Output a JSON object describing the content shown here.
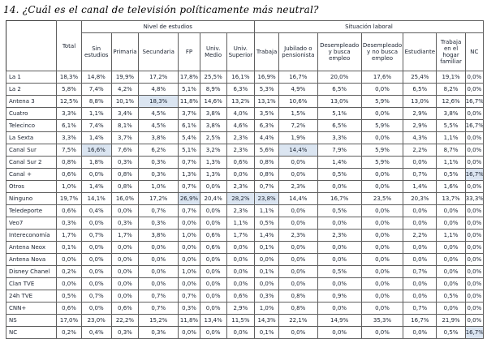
{
  "title": "14. ¿Cuál es el canal de televisión políticamente más neutral?",
  "table": {
    "total_header": "Total",
    "groups": [
      {
        "label": "Nivel de estudios",
        "columns": [
          "Sin estudios",
          "Primaria",
          "Secundaria",
          "FP",
          "Univ. Medio",
          "Univ. Superior"
        ]
      },
      {
        "label": "Situación laboral",
        "columns": [
          "Trabaja",
          "Jubilado o pensionista",
          "Desempleado y busca empleo",
          "Desempleado y no busca empleo",
          "Estudiante",
          "Trabaja en el hogar familiar",
          "NC"
        ]
      }
    ],
    "highlight_color": "#dbe5f1",
    "rows": [
      {
        "label": "La 1",
        "values": [
          "18,3%",
          "14,8%",
          "19,9%",
          "17,2%",
          "17,8%",
          "25,5%",
          "16,1%",
          "16,9%",
          "16,7%",
          "20,0%",
          "17,6%",
          "25,4%",
          "19,1%",
          "0,0%"
        ],
        "highlights": []
      },
      {
        "label": "La 2",
        "values": [
          "5,8%",
          "7,4%",
          "4,2%",
          "4,8%",
          "5,1%",
          "8,9%",
          "6,3%",
          "5,3%",
          "4,9%",
          "6,5%",
          "0,0%",
          "6,5%",
          "8,2%",
          "0,0%"
        ],
        "highlights": []
      },
      {
        "label": "Antena 3",
        "values": [
          "12,5%",
          "8,8%",
          "10,1%",
          "18,3%",
          "11,8%",
          "14,6%",
          "13,2%",
          "13,1%",
          "10,6%",
          "13,0%",
          "5,9%",
          "13,0%",
          "12,6%",
          "16,7%"
        ],
        "highlights": [
          3
        ]
      },
      {
        "label": "Cuatro",
        "values": [
          "3,3%",
          "1,1%",
          "3,4%",
          "4,5%",
          "3,7%",
          "3,8%",
          "4,0%",
          "3,5%",
          "1,5%",
          "5,1%",
          "0,0%",
          "2,9%",
          "3,8%",
          "0,0%"
        ],
        "highlights": []
      },
      {
        "label": "Telecinco",
        "values": [
          "6,1%",
          "7,4%",
          "8,1%",
          "4,5%",
          "6,1%",
          "3,8%",
          "4,6%",
          "6,3%",
          "7,2%",
          "6,5%",
          "5,9%",
          "2,9%",
          "5,5%",
          "16,7%"
        ],
        "highlights": []
      },
      {
        "label": "La Sexta",
        "values": [
          "3,3%",
          "1,4%",
          "3,7%",
          "3,8%",
          "5,4%",
          "2,5%",
          "2,3%",
          "4,4%",
          "1,9%",
          "3,3%",
          "0,0%",
          "4,3%",
          "1,1%",
          "0,0%"
        ],
        "highlights": []
      },
      {
        "label": "Canal Sur",
        "values": [
          "7,5%",
          "16,6%",
          "7,6%",
          "6,2%",
          "5,1%",
          "3,2%",
          "2,3%",
          "5,6%",
          "14,4%",
          "7,9%",
          "5,9%",
          "2,2%",
          "8,7%",
          "0,0%"
        ],
        "highlights": [
          1,
          8
        ]
      },
      {
        "label": "Canal Sur 2",
        "values": [
          "0,8%",
          "1,8%",
          "0,3%",
          "0,3%",
          "0,7%",
          "1,3%",
          "0,6%",
          "0,8%",
          "0,0%",
          "1,4%",
          "5,9%",
          "0,0%",
          "1,1%",
          "0,0%"
        ],
        "highlights": []
      },
      {
        "label": "Canal +",
        "values": [
          "0,6%",
          "0,0%",
          "0,8%",
          "0,3%",
          "1,3%",
          "1,3%",
          "0,0%",
          "0,8%",
          "0,0%",
          "0,5%",
          "0,0%",
          "0,7%",
          "0,5%",
          "16,7%"
        ],
        "highlights": [
          13
        ]
      },
      {
        "label": "Otros",
        "values": [
          "1,0%",
          "1,4%",
          "0,8%",
          "1,0%",
          "0,7%",
          "0,0%",
          "2,3%",
          "0,7%",
          "2,3%",
          "0,0%",
          "0,0%",
          "1,4%",
          "1,6%",
          "0,0%"
        ],
        "highlights": []
      },
      {
        "label": "Ninguno",
        "values": [
          "19,7%",
          "14,1%",
          "16,0%",
          "17,2%",
          "26,9%",
          "20,4%",
          "28,2%",
          "23,8%",
          "14,4%",
          "16,7%",
          "23,5%",
          "20,3%",
          "13,7%",
          "33,3%"
        ],
        "highlights": [
          4,
          6,
          7
        ]
      },
      {
        "label": "Teledeporte",
        "values": [
          "0,6%",
          "0,4%",
          "0,0%",
          "0,7%",
          "0,7%",
          "0,0%",
          "2,3%",
          "1,1%",
          "0,0%",
          "0,5%",
          "0,0%",
          "0,0%",
          "0,0%",
          "0,0%"
        ],
        "highlights": []
      },
      {
        "label": "Veo7",
        "values": [
          "0,3%",
          "0,0%",
          "0,3%",
          "0,3%",
          "0,0%",
          "0,0%",
          "1,1%",
          "0,5%",
          "0,0%",
          "0,0%",
          "0,0%",
          "0,0%",
          "0,0%",
          "0,0%"
        ],
        "highlights": []
      },
      {
        "label": "Intereconomía",
        "values": [
          "1,7%",
          "0,7%",
          "1,7%",
          "3,8%",
          "1,0%",
          "0,6%",
          "1,7%",
          "1,4%",
          "2,3%",
          "2,3%",
          "0,0%",
          "2,2%",
          "1,1%",
          "0,0%"
        ],
        "highlights": []
      },
      {
        "label": "Antena Neox",
        "values": [
          "0,1%",
          "0,0%",
          "0,0%",
          "0,0%",
          "0,0%",
          "0,6%",
          "0,0%",
          "0,1%",
          "0,0%",
          "0,0%",
          "0,0%",
          "0,0%",
          "0,0%",
          "0,0%"
        ],
        "highlights": []
      },
      {
        "label": "Antena Nova",
        "values": [
          "0,0%",
          "0,0%",
          "0,0%",
          "0,0%",
          "0,0%",
          "0,0%",
          "0,0%",
          "0,0%",
          "0,0%",
          "0,0%",
          "0,0%",
          "0,0%",
          "0,0%",
          "0,0%"
        ],
        "highlights": []
      },
      {
        "label": "Disney Chanel",
        "values": [
          "0,2%",
          "0,0%",
          "0,0%",
          "0,0%",
          "1,0%",
          "0,0%",
          "0,0%",
          "0,1%",
          "0,0%",
          "0,5%",
          "0,0%",
          "0,7%",
          "0,0%",
          "0,0%"
        ],
        "highlights": []
      },
      {
        "label": "Clan TVE",
        "values": [
          "0,0%",
          "0,0%",
          "0,0%",
          "0,0%",
          "0,0%",
          "0,0%",
          "0,0%",
          "0,0%",
          "0,0%",
          "0,0%",
          "0,0%",
          "0,0%",
          "0,0%",
          "0,0%"
        ],
        "highlights": []
      },
      {
        "label": "24h TVE",
        "values": [
          "0,5%",
          "0,7%",
          "0,0%",
          "0,7%",
          "0,7%",
          "0,0%",
          "0,6%",
          "0,3%",
          "0,8%",
          "0,9%",
          "0,0%",
          "0,0%",
          "0,5%",
          "0,0%"
        ],
        "highlights": []
      },
      {
        "label": "CNN+",
        "values": [
          "0,6%",
          "0,0%",
          "0,6%",
          "0,7%",
          "0,3%",
          "0,0%",
          "2,9%",
          "1,0%",
          "0,8%",
          "0,0%",
          "0,0%",
          "0,7%",
          "0,0%",
          "0,0%"
        ],
        "highlights": []
      },
      {
        "label": "NS",
        "values": [
          "17,0%",
          "23,0%",
          "22,2%",
          "15,2%",
          "11,8%",
          "13,4%",
          "11,5%",
          "14,3%",
          "22,1%",
          "14,9%",
          "35,3%",
          "16,7%",
          "21,9%",
          "0,0%"
        ],
        "highlights": []
      },
      {
        "label": "NC",
        "values": [
          "0,2%",
          "0,4%",
          "0,3%",
          "0,3%",
          "0,0%",
          "0,0%",
          "0,0%",
          "0,1%",
          "0,0%",
          "0,0%",
          "0,0%",
          "0,0%",
          "0,5%",
          "16,7%"
        ],
        "highlights": [
          13
        ]
      }
    ]
  }
}
